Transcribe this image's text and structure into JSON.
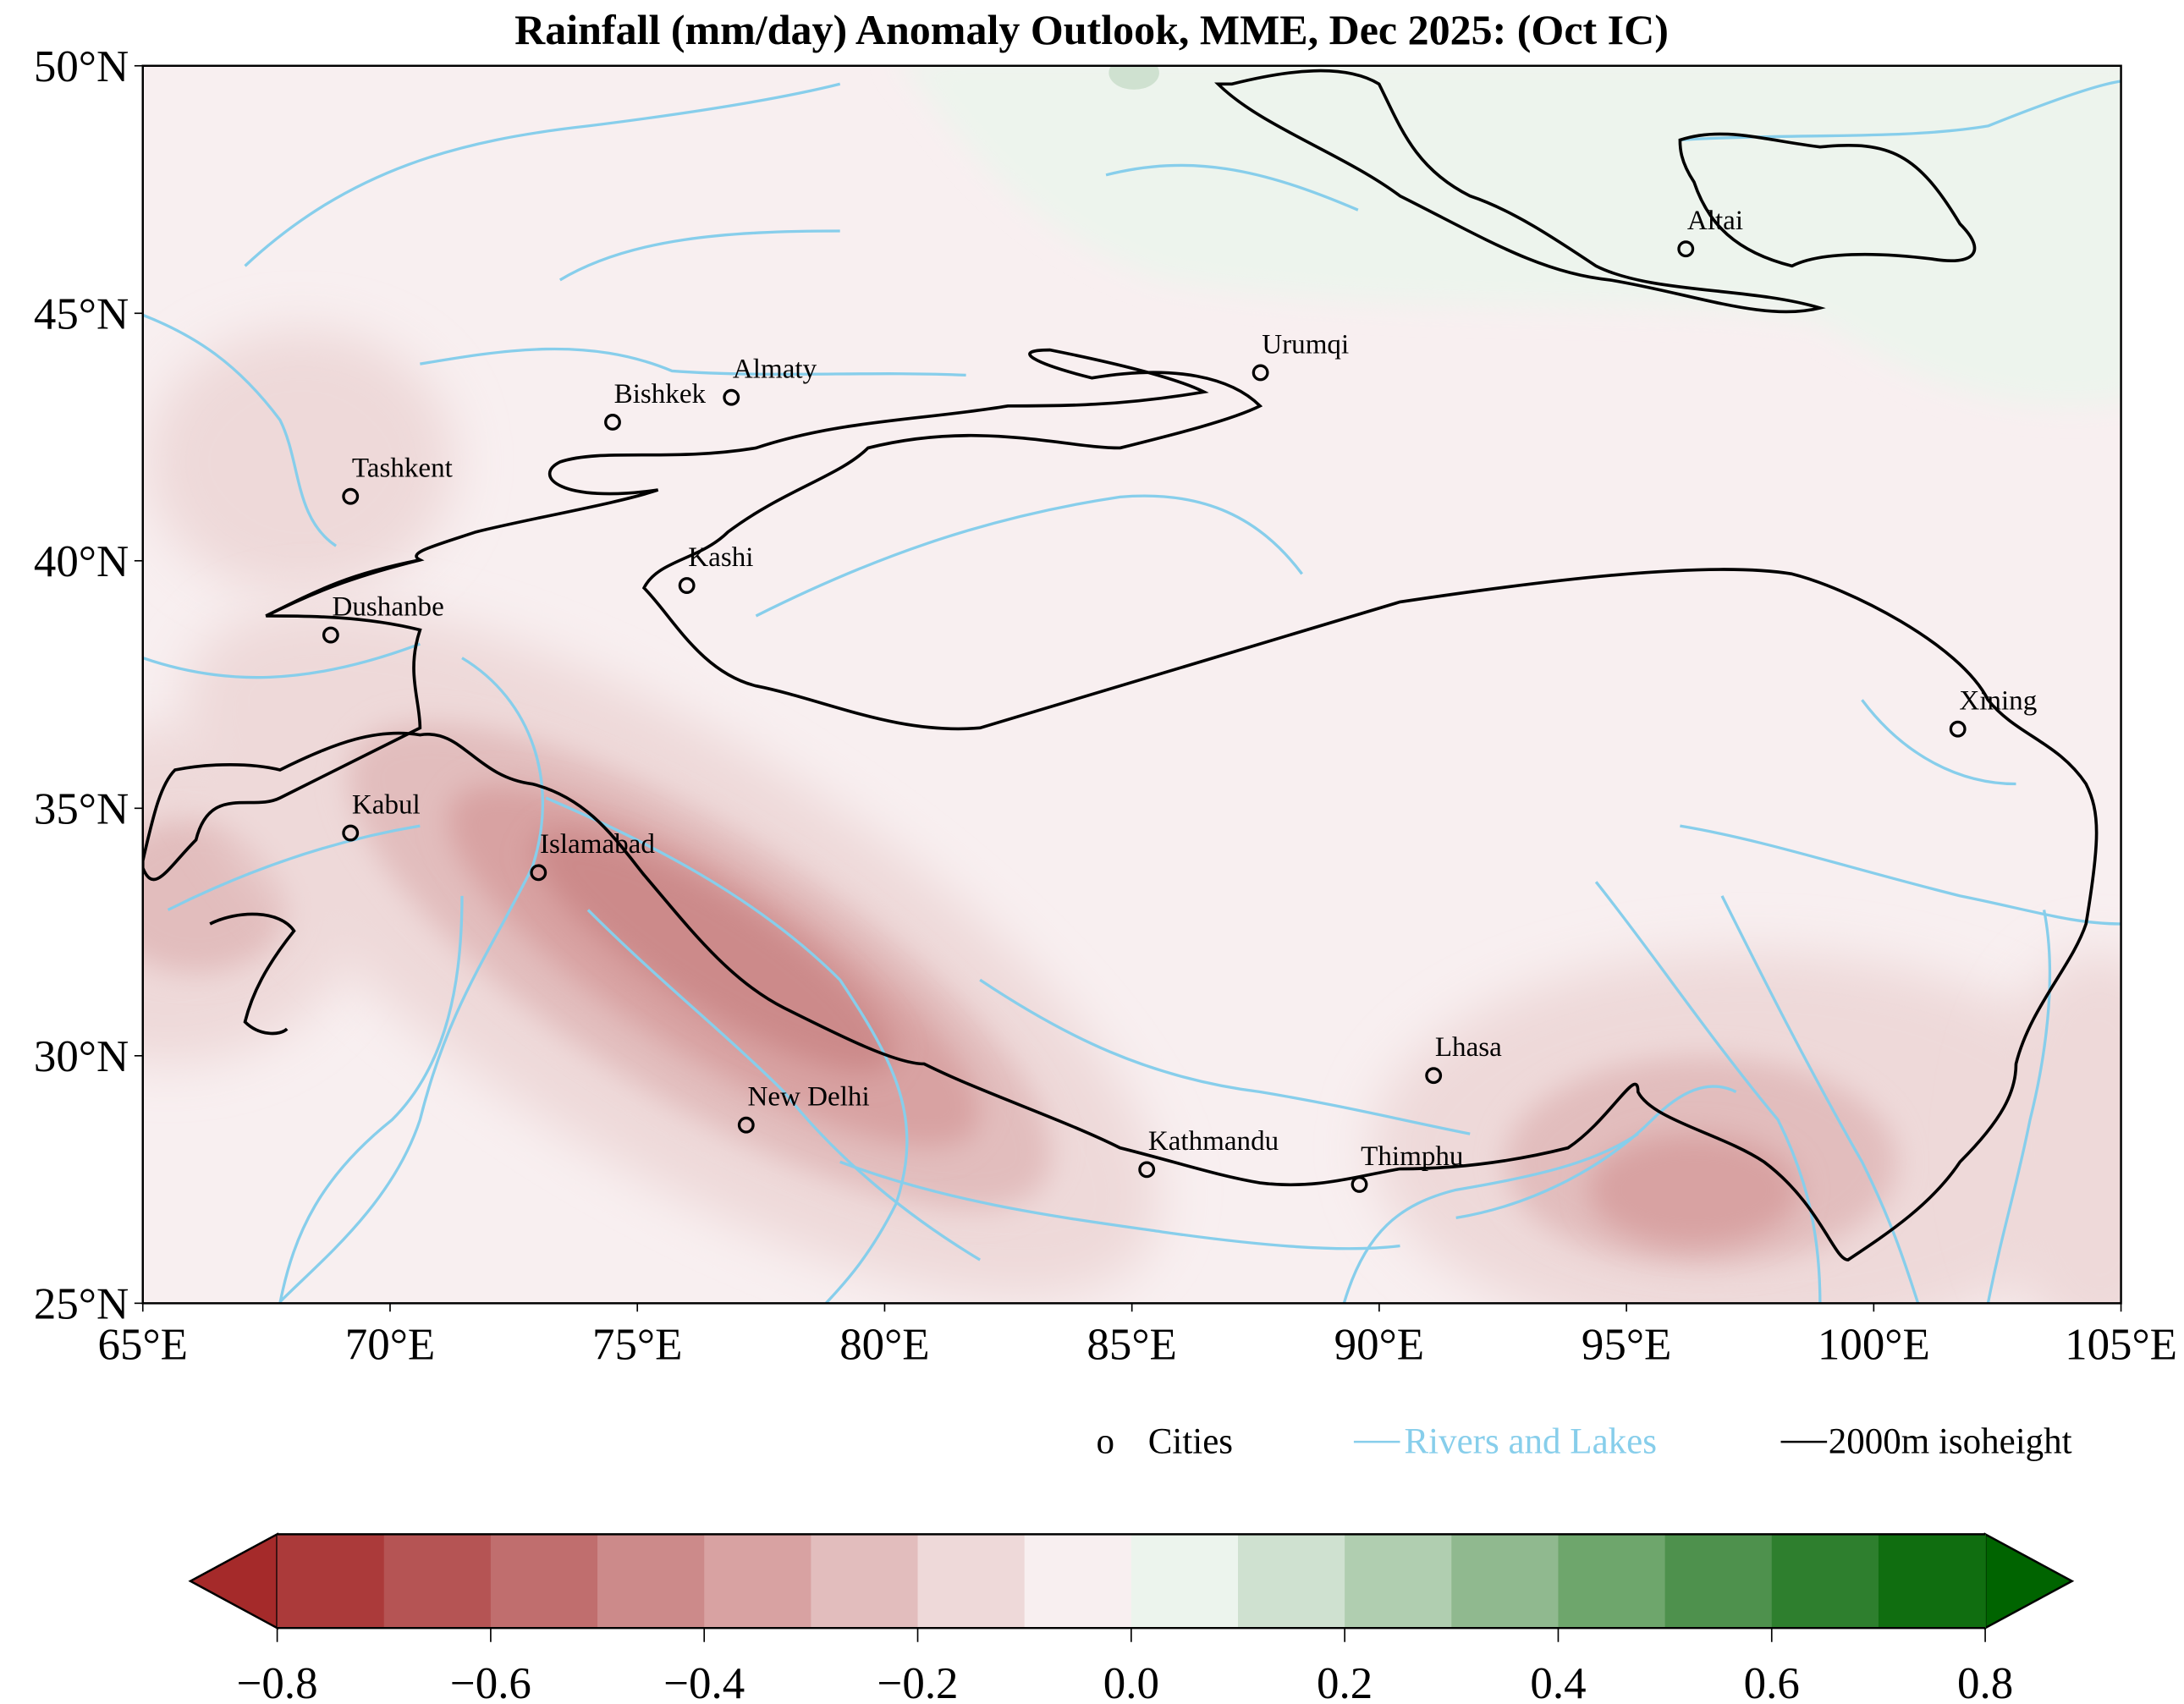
{
  "title": "Rainfall (mm/day) Anomaly Outlook, MME, Dec  2025:  (Oct IC)",
  "map": {
    "lon_range": [
      65,
      105
    ],
    "lat_range": [
      25,
      50
    ],
    "x_ticks": [
      "65°E",
      "70°E",
      "75°E",
      "80°E",
      "85°E",
      "90°E",
      "95°E",
      "100°E",
      "105°E"
    ],
    "y_ticks": [
      "25°N",
      "30°N",
      "35°N",
      "40°N",
      "45°N",
      "50°N"
    ],
    "cities": [
      {
        "name": "Altai",
        "lon": 96.2,
        "lat": 46.3
      },
      {
        "name": "Urumqi",
        "lon": 87.6,
        "lat": 43.8
      },
      {
        "name": "Almaty",
        "lon": 76.9,
        "lat": 43.3
      },
      {
        "name": "Bishkek",
        "lon": 74.5,
        "lat": 42.8
      },
      {
        "name": "Tashkent",
        "lon": 69.2,
        "lat": 41.3
      },
      {
        "name": "Kashi",
        "lon": 76.0,
        "lat": 39.5
      },
      {
        "name": "Dushanbe",
        "lon": 68.8,
        "lat": 38.5
      },
      {
        "name": "Xining",
        "lon": 101.7,
        "lat": 36.6
      },
      {
        "name": "Kabul",
        "lon": 69.2,
        "lat": 34.5
      },
      {
        "name": "Islamabad",
        "lon": 73.0,
        "lat": 33.7
      },
      {
        "name": "Lhasa",
        "lon": 91.1,
        "lat": 29.6
      },
      {
        "name": "New Delhi",
        "lon": 77.2,
        "lat": 28.6
      },
      {
        "name": "Kathmandu",
        "lon": 85.3,
        "lat": 27.7
      },
      {
        "name": "Thimphu",
        "lon": 89.6,
        "lat": 27.4
      }
    ]
  },
  "legend": {
    "cities_marker": "o",
    "cities": "Cities",
    "rivers": "Rivers and Lakes",
    "isoheight": "2000m isoheight",
    "river_color": "#87ceeb"
  },
  "colorbar": {
    "ticks": [
      "−0.8",
      "−0.6",
      "−0.4",
      "−0.2",
      "0.0",
      "0.2",
      "0.4",
      "0.6",
      "0.8"
    ],
    "under_color": "#a52a2a",
    "over_color": "#006400",
    "colors": [
      "#ab3a3a",
      "#b55454",
      "#c06e6e",
      "#cc8a8a",
      "#d8a2a2",
      "#e2bdbd",
      "#eed9d9",
      "#f8eff0",
      "#ecf4ed",
      "#cfe1d0",
      "#b0ceb0",
      "#90b98f",
      "#6ea66c",
      "#4e914d",
      "#2e7f2e",
      "#106e10"
    ]
  }
}
